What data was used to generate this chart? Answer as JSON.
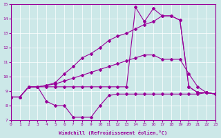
{
  "xlabel": "Windchill (Refroidissement éolien,°C)",
  "background_color": "#cce8e8",
  "grid_color": "#ffffff",
  "line_color": "#990099",
  "x": [
    0,
    1,
    2,
    3,
    4,
    5,
    6,
    7,
    8,
    9,
    10,
    11,
    12,
    13,
    14,
    15,
    16,
    17,
    18,
    19,
    20,
    21,
    22,
    23
  ],
  "line1": [
    8.6,
    8.6,
    9.3,
    9.3,
    9.3,
    9.3,
    9.3,
    9.3,
    9.3,
    9.3,
    9.3,
    9.3,
    9.3,
    9.3,
    14.8,
    13.8,
    14.7,
    14.2,
    14.2,
    13.9,
    9.3,
    8.9,
    8.9,
    8.8
  ],
  "line2": [
    8.6,
    8.6,
    9.3,
    9.3,
    9.4,
    9.5,
    9.7,
    9.9,
    10.1,
    10.3,
    10.5,
    10.7,
    10.9,
    11.1,
    11.3,
    11.5,
    11.5,
    11.2,
    11.2,
    11.2,
    10.2,
    9.3,
    8.9,
    8.8
  ],
  "line3": [
    8.6,
    8.6,
    9.3,
    9.3,
    9.4,
    9.6,
    10.2,
    10.7,
    11.3,
    11.6,
    12.0,
    12.5,
    12.8,
    13.0,
    13.3,
    13.6,
    13.8,
    14.2,
    14.2,
    13.9,
    9.3,
    8.9,
    8.9,
    8.8
  ],
  "line4": [
    8.6,
    8.6,
    9.3,
    9.3,
    8.3,
    8.0,
    8.0,
    7.2,
    7.2,
    7.2,
    8.0,
    8.7,
    8.8,
    8.8,
    8.8,
    8.8,
    8.8,
    8.8,
    8.8,
    8.8,
    8.8,
    8.8,
    8.9,
    8.8
  ],
  "ylim": [
    7,
    15
  ],
  "xlim": [
    0,
    23
  ],
  "yticks": [
    7,
    8,
    9,
    10,
    11,
    12,
    13,
    14,
    15
  ],
  "xticks": [
    0,
    1,
    2,
    3,
    4,
    5,
    6,
    7,
    8,
    9,
    10,
    11,
    12,
    13,
    14,
    15,
    16,
    17,
    18,
    19,
    20,
    21,
    22,
    23
  ]
}
